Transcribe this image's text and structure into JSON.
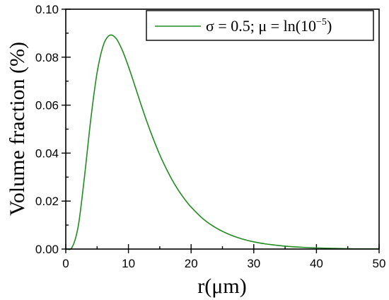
{
  "chart_data": {
    "type": "line",
    "title": "",
    "xlabel": "r(μm)",
    "ylabel": "Volume fraction (%)",
    "xlim": [
      0,
      50
    ],
    "ylim": [
      0,
      0.1
    ],
    "xticks": [
      "0",
      "10",
      "20",
      "30",
      "40",
      "50"
    ],
    "yticks": [
      "0.00",
      "0.02",
      "0.04",
      "0.06",
      "0.08",
      "0.10"
    ],
    "grid": false,
    "legend_position": "top-right",
    "series": [
      {
        "name": "σ = 0.5; μ = ln(10",
        "name_superscript": "−5",
        "name_suffix": ")",
        "color": "#228B22",
        "x": [
          0,
          1,
          2,
          3,
          4,
          5,
          6,
          7,
          8,
          9,
          10,
          11,
          12,
          13,
          14,
          15,
          16,
          17,
          18,
          19,
          20,
          22,
          24,
          26,
          28,
          30,
          32,
          35,
          38,
          42,
          46,
          50
        ],
        "y": [
          0,
          0.0007,
          0.0097,
          0.0305,
          0.0543,
          0.0736,
          0.085,
          0.0891,
          0.0879,
          0.083,
          0.0761,
          0.0683,
          0.0603,
          0.0527,
          0.0457,
          0.0393,
          0.0337,
          0.0287,
          0.0244,
          0.0207,
          0.0175,
          0.0124,
          0.0088,
          0.0062,
          0.0043,
          0.003,
          0.0021,
          0.0012,
          0.0007,
          0.0003,
          0.0001,
          0.0001
        ]
      }
    ]
  }
}
